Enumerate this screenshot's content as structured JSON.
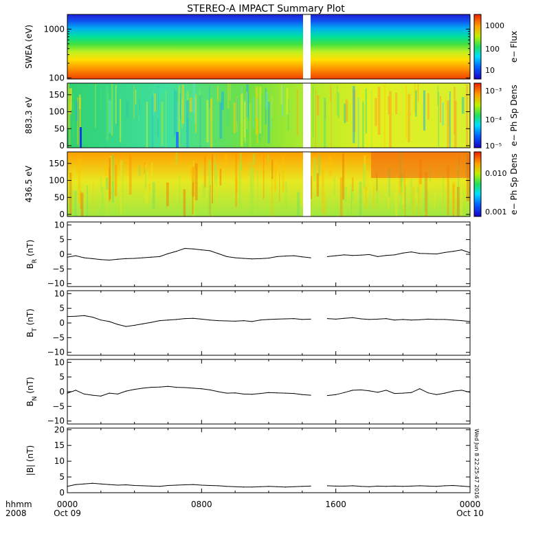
{
  "title": "STEREO-A IMPACT Summary Plot",
  "timestamp": "Wed Jun 8 22:25:47 2016",
  "footer": {
    "row1_label": "hhmm",
    "row2_label": "2008",
    "x_ticks": [
      {
        "hhmm": "0000",
        "date": "Oct 09"
      },
      {
        "hhmm": "0800",
        "date": ""
      },
      {
        "hhmm": "1600",
        "date": ""
      },
      {
        "hhmm": "0000",
        "date": "Oct 10"
      }
    ]
  },
  "colors": {
    "line": "#000000",
    "gap": "#ffffff",
    "frame": "#000000"
  },
  "chart_data": [
    {
      "type": "heatmap",
      "name": "swea-flux",
      "ylabel": "SWEA (eV)",
      "yscale": "log",
      "ylim": [
        95,
        2000
      ],
      "yticks": [
        {
          "v": 100,
          "label": "100"
        },
        {
          "v": 1000,
          "label": "1000"
        }
      ],
      "colorbar": {
        "label": "e− Flux",
        "scale": "log",
        "ticks": [
          "10",
          "100",
          "1000"
        ]
      },
      "x_range_hours": [
        0,
        24
      ],
      "data_gap_hours": [
        14.75,
        15.2
      ],
      "description_rows": "flux decreases with energy: red at 100 eV, green ~400 eV, blue above 1000 eV"
    },
    {
      "type": "heatmap",
      "name": "pad-883",
      "ylabel": "883.3 eV",
      "ylim": [
        0,
        180
      ],
      "yticks": [
        "0",
        "50",
        "100",
        "150"
      ],
      "colorbar": {
        "label": "e− Ph Sp Dens",
        "scale": "log",
        "ticks": [
          "10⁻⁵",
          "10⁻⁴",
          "10⁻³"
        ]
      },
      "x_range_hours": [
        0,
        24
      ],
      "data_gap_hours": [
        14.75,
        15.2
      ]
    },
    {
      "type": "heatmap",
      "name": "pad-436",
      "ylabel": "436.5 eV",
      "ylim": [
        0,
        180
      ],
      "yticks": [
        "0",
        "50",
        "100",
        "150"
      ],
      "colorbar": {
        "label": "e− Ph Sp Dens",
        "scale": "log",
        "ticks": [
          "0.001",
          "0.010"
        ]
      },
      "x_range_hours": [
        0,
        24
      ],
      "data_gap_hours": [
        14.75,
        15.2
      ]
    },
    {
      "type": "line",
      "name": "br",
      "ylabel": "B_R (nT)",
      "ylabel_main": "B",
      "ylabel_sub": "R",
      "ylabel_unit": "(nT)",
      "ylim": [
        -11,
        11
      ],
      "yticks": [
        "10",
        "5",
        "0",
        "−5",
        "−10"
      ],
      "ytick_values": [
        10,
        5,
        0,
        -5,
        -10
      ],
      "x": [
        0,
        0.5,
        1,
        1.5,
        2,
        2.5,
        3,
        3.5,
        4,
        4.5,
        5,
        5.5,
        6,
        6.5,
        7,
        7.5,
        8,
        8.5,
        9,
        9.5,
        10,
        10.5,
        11,
        11.5,
        12,
        12.5,
        13,
        13.5,
        14,
        14.5,
        15,
        15.5,
        16,
        16.5,
        17,
        17.5,
        18,
        18.5,
        19,
        19.5,
        20,
        20.5,
        21,
        21.5,
        22,
        22.5,
        23,
        23.5,
        24
      ],
      "y": [
        -1.0,
        -0.5,
        -1.2,
        -1.5,
        -1.8,
        -2.0,
        -1.7,
        -1.5,
        -1.4,
        -1.2,
        -1.0,
        -0.8,
        0.2,
        1.0,
        2.0,
        1.8,
        1.5,
        1.2,
        0.2,
        -0.8,
        -1.2,
        -1.4,
        -1.6,
        -1.5,
        -1.3,
        -0.8,
        -0.6,
        -0.5,
        -0.9,
        -1.2,
        null,
        -0.8,
        -0.5,
        -0.2,
        -0.4,
        -0.3,
        -0.1,
        -0.8,
        -0.4,
        -0.2,
        0.4,
        0.8,
        0.3,
        0.2,
        0.1,
        0.6,
        1.0,
        1.5,
        0.5
      ]
    },
    {
      "type": "line",
      "name": "bt",
      "ylabel": "B_T (nT)",
      "ylabel_main": "B",
      "ylabel_sub": "T",
      "ylabel_unit": "(nT)",
      "ylim": [
        -11,
        11
      ],
      "yticks": [
        "10",
        "5",
        "0",
        "−5",
        "−10"
      ],
      "ytick_values": [
        10,
        5,
        0,
        -5,
        -10
      ],
      "x": [
        0,
        0.5,
        1,
        1.5,
        2,
        2.5,
        3,
        3.5,
        4,
        4.5,
        5,
        5.5,
        6,
        6.5,
        7,
        7.5,
        8,
        8.5,
        9,
        9.5,
        10,
        10.5,
        11,
        11.5,
        12,
        12.5,
        13,
        13.5,
        14,
        14.5,
        15,
        15.5,
        16,
        16.5,
        17,
        17.5,
        18,
        18.5,
        19,
        19.5,
        20,
        20.5,
        21,
        21.5,
        22,
        22.5,
        23,
        23.5,
        24
      ],
      "y": [
        2.2,
        2.3,
        2.5,
        2.0,
        1.0,
        0.5,
        -0.5,
        -1.2,
        -0.8,
        -0.3,
        0.2,
        0.8,
        1.0,
        1.2,
        1.5,
        1.6,
        1.3,
        1.0,
        0.8,
        0.7,
        0.6,
        0.8,
        0.5,
        1.0,
        1.2,
        1.3,
        1.4,
        1.5,
        1.2,
        1.3,
        null,
        1.5,
        1.3,
        1.6,
        1.8,
        1.4,
        1.2,
        1.3,
        1.5,
        1.0,
        1.2,
        1.0,
        1.1,
        1.3,
        1.2,
        1.2,
        1.0,
        0.8,
        0.5
      ]
    },
    {
      "type": "line",
      "name": "bn",
      "ylabel": "B_N (nT)",
      "ylabel_main": "B",
      "ylabel_sub": "N",
      "ylabel_unit": "(nT)",
      "ylim": [
        -11,
        11
      ],
      "yticks": [
        "10",
        "5",
        "0",
        "−5",
        "−10"
      ],
      "ytick_values": [
        10,
        5,
        0,
        -5,
        -10
      ],
      "x": [
        0,
        0.5,
        1,
        1.5,
        2,
        2.5,
        3,
        3.5,
        4,
        4.5,
        5,
        5.5,
        6,
        6.5,
        7,
        7.5,
        8,
        8.5,
        9,
        9.5,
        10,
        10.5,
        11,
        11.5,
        12,
        12.5,
        13,
        13.5,
        14,
        14.5,
        15,
        15.5,
        16,
        16.5,
        17,
        17.5,
        18,
        18.5,
        19,
        19.5,
        20,
        20.5,
        21,
        21.5,
        22,
        22.5,
        23,
        23.5,
        24
      ],
      "y": [
        -0.5,
        0.5,
        -0.8,
        -1.2,
        -1.5,
        -0.5,
        -0.8,
        0.2,
        0.8,
        1.2,
        1.5,
        1.6,
        1.8,
        1.5,
        1.4,
        1.2,
        1.0,
        0.6,
        0.0,
        -0.5,
        -0.4,
        -0.8,
        -0.9,
        -0.6,
        -0.3,
        -0.4,
        -0.5,
        -0.6,
        -1.0,
        -1.2,
        null,
        -1.3,
        -1.0,
        -0.3,
        0.5,
        0.6,
        0.3,
        -0.2,
        0.5,
        -0.6,
        -0.5,
        -0.3,
        1.0,
        -0.4,
        -1.0,
        -0.5,
        0.2,
        0.5,
        -0.2
      ]
    },
    {
      "type": "line",
      "name": "btot",
      "ylabel": "|B| (nT)",
      "ylabel_main": "|B|",
      "ylabel_sub": "",
      "ylabel_unit": "(nT)",
      "ylim": [
        0,
        20.5
      ],
      "yticks": [
        "20",
        "15",
        "10",
        "5",
        "0"
      ],
      "ytick_values": [
        20,
        15,
        10,
        5,
        0
      ],
      "x": [
        0,
        0.5,
        1,
        1.5,
        2,
        2.5,
        3,
        3.5,
        4,
        4.5,
        5,
        5.5,
        6,
        6.5,
        7,
        7.5,
        8,
        8.5,
        9,
        9.5,
        10,
        10.5,
        11,
        11.5,
        12,
        12.5,
        13,
        13.5,
        14,
        14.5,
        15,
        15.5,
        16,
        16.5,
        17,
        17.5,
        18,
        18.5,
        19,
        19.5,
        20,
        20.5,
        21,
        21.5,
        22,
        22.5,
        23,
        23.5,
        24
      ],
      "y": [
        2.0,
        2.6,
        2.8,
        3.0,
        2.8,
        2.6,
        2.4,
        2.5,
        2.3,
        2.2,
        2.1,
        2.0,
        2.3,
        2.4,
        2.5,
        2.6,
        2.4,
        2.3,
        2.2,
        2.0,
        1.9,
        1.8,
        1.8,
        1.9,
        2.0,
        1.9,
        1.8,
        1.9,
        2.0,
        2.1,
        null,
        2.2,
        2.1,
        2.1,
        2.2,
        2.0,
        1.9,
        2.1,
        2.0,
        2.1,
        2.0,
        2.1,
        2.2,
        2.1,
        2.0,
        2.2,
        2.3,
        2.1,
        1.9
      ]
    }
  ]
}
